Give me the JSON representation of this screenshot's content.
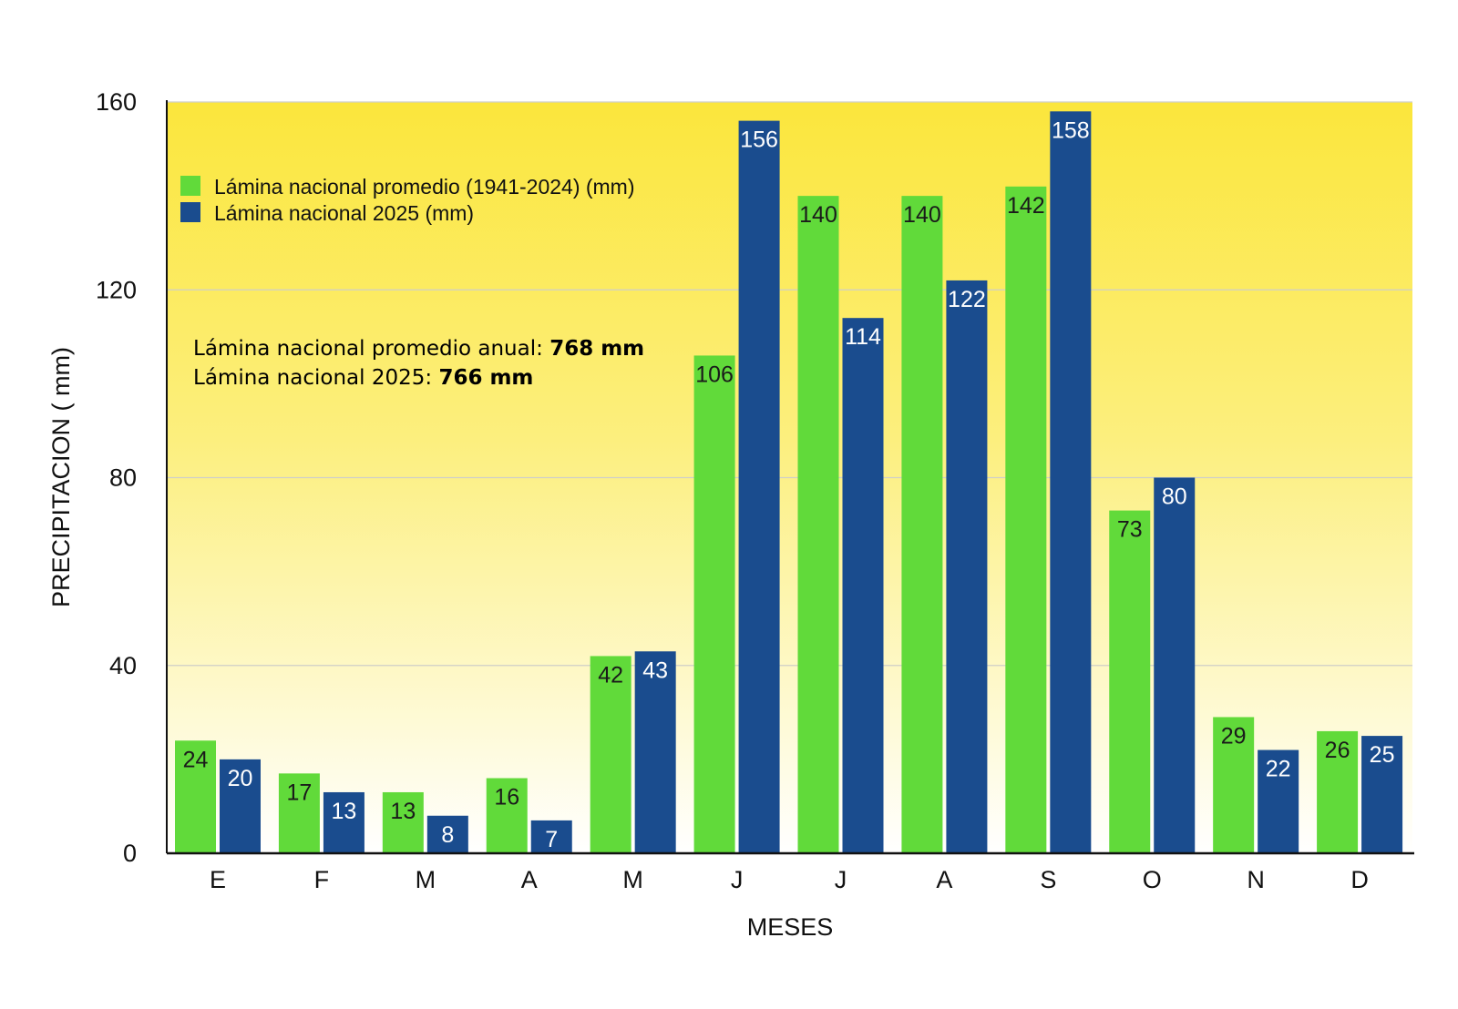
{
  "chart_data": {
    "type": "bar",
    "title": "",
    "xlabel": "MESES",
    "ylabel": "PRECIPITACION ( mm)",
    "ylim": [
      0,
      160
    ],
    "yticks": [
      0,
      40,
      80,
      120,
      160
    ],
    "grid": true,
    "legend_position": "top-left",
    "categories": [
      "E",
      "F",
      "M",
      "A",
      "M",
      "J",
      "J",
      "A",
      "S",
      "O",
      "N",
      "D"
    ],
    "series": [
      {
        "name": "Lámina nacional promedio (1941-2024) (mm)",
        "color": "#61DA3A",
        "label_color": "#1a1a1a",
        "values": [
          24,
          17,
          13,
          16,
          42,
          106,
          140,
          140,
          142,
          73,
          29,
          26
        ]
      },
      {
        "name": "Lámina nacional 2025 (mm)",
        "color": "#1A4C8E",
        "label_color": "#ffffff",
        "values": [
          20,
          13,
          8,
          7,
          43,
          156,
          114,
          122,
          158,
          80,
          22,
          25
        ]
      }
    ],
    "annotations": {
      "line1_prefix": "Lámina nacional promedio anual: ",
      "line1_value": "768 mm",
      "line2_prefix": "Lámina nacional 2025: ",
      "line2_value": "766 mm"
    }
  }
}
